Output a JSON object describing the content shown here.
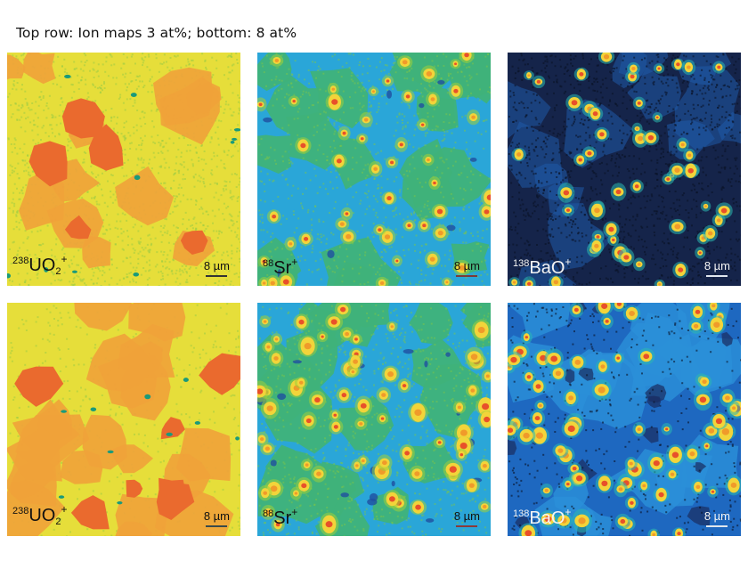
{
  "caption": "Top row: Ion maps 3 at%; bottom: 8 at%",
  "colors": {
    "background": "#ffffff",
    "uo2_base": "#e6de3a",
    "uo2_orange": "#f0a23a",
    "uo2_red": "#ea6a2e",
    "uo2_green_speckle": "#9ccc44",
    "sr_base": "#3fb27a",
    "sr_blue": "#2aa6d8",
    "sr_darkblue": "#1f4fa0",
    "bao_base": "#15244a",
    "bao_blue": "#1f5aa8",
    "hotspot_yellow": "#f2d43a",
    "hotspot_red": "#e8502a"
  },
  "rows": [
    {
      "name": "3 at%",
      "panels": [
        {
          "species": "UO2+",
          "mass": "238",
          "formula": "UO",
          "subscript": "2",
          "charge": "+",
          "scale_label": "8 µm",
          "theme": "uo2"
        },
        {
          "species": "Sr+",
          "mass": "88",
          "formula": "Sr",
          "subscript": "",
          "charge": "+",
          "scale_label": "8 µm",
          "theme": "sr"
        },
        {
          "species": "BaO+",
          "mass": "138",
          "formula": "BaO",
          "subscript": "",
          "charge": "+",
          "scale_label": "8 µm",
          "theme": "bao"
        }
      ]
    },
    {
      "name": "8 at%",
      "panels": [
        {
          "species": "UO2+",
          "mass": "238",
          "formula": "UO",
          "subscript": "2",
          "charge": "+",
          "scale_label": "8 µm",
          "theme": "uo2"
        },
        {
          "species": "Sr+",
          "mass": "88",
          "formula": "Sr",
          "subscript": "",
          "charge": "+",
          "scale_label": "8 µm",
          "theme": "sr"
        },
        {
          "species": "BaO+",
          "mass": "138",
          "formula": "BaO",
          "subscript": "",
          "charge": "+",
          "scale_label": "8 µm",
          "theme": "bao"
        }
      ]
    }
  ]
}
